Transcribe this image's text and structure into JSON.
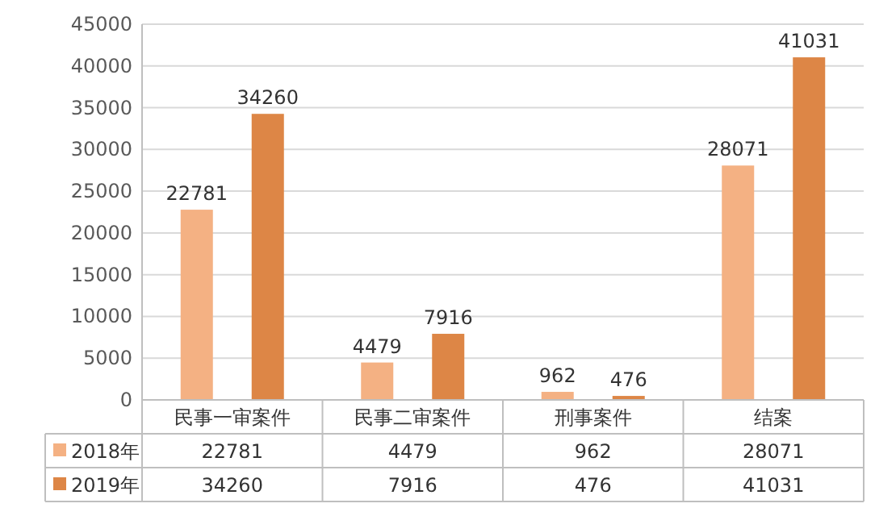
{
  "chart_data": {
    "type": "bar",
    "categories": [
      "民事一审案件",
      "民事二审案件",
      "刑事案件",
      "结案"
    ],
    "series": [
      {
        "name": "2018年",
        "color": "#f4b183",
        "values": [
          22781,
          4479,
          962,
          28071
        ]
      },
      {
        "name": "2019年",
        "color": "#dd8646",
        "values": [
          34260,
          7916,
          476,
          41031
        ]
      }
    ],
    "ylim": [
      0,
      45000
    ],
    "yticks": [
      0,
      5000,
      10000,
      15000,
      20000,
      25000,
      30000,
      35000,
      40000,
      45000
    ],
    "annotations": [
      "22781",
      "34260",
      "4479",
      "7916",
      "962",
      "476",
      "28071",
      "41031"
    ],
    "grid": "y",
    "legend": "bottom",
    "data_labels": true
  }
}
